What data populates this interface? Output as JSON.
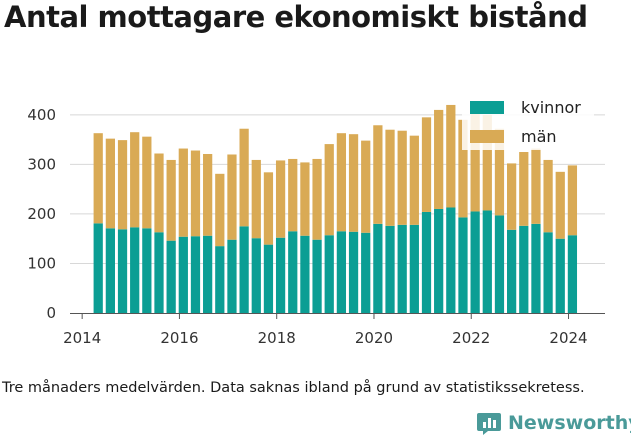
{
  "title": "Antal mottagare ekonomiskt bistånd",
  "footnote": "Tre månaders medelvärden. Data saknas ibland på grund av statistikssekretess.",
  "brand": {
    "name": "Newsworthy",
    "icon": "bar-chart-logo-icon"
  },
  "colors": {
    "kvinnor": "#0b9e94",
    "man": "#d9aa55",
    "grid": "#d8d8d8"
  },
  "chart_data": {
    "type": "bar",
    "stacked": true,
    "x_start": 2014.33,
    "x_step": 0.25,
    "xlim": [
      2013.75,
      2024.75
    ],
    "ylim": [
      0,
      430
    ],
    "xticks": [
      2014,
      2016,
      2018,
      2020,
      2022,
      2024
    ],
    "yticks": [
      0,
      100,
      200,
      300,
      400
    ],
    "grid": "horizontal",
    "legend_position": "top-right",
    "series": [
      {
        "name": "kvinnor",
        "values": [
          181,
          171,
          169,
          173,
          171,
          163,
          146,
          154,
          155,
          156,
          135,
          148,
          175,
          151,
          138,
          152,
          165,
          156,
          148,
          157,
          165,
          164,
          162,
          180,
          176,
          178,
          178,
          204,
          210,
          213,
          193,
          205,
          207,
          197,
          168,
          176,
          180,
          163,
          150,
          157
        ]
      },
      {
        "name": "män",
        "values": [
          182,
          181,
          180,
          192,
          185,
          159,
          163,
          178,
          173,
          165,
          146,
          172,
          197,
          158,
          146,
          156,
          146,
          148,
          163,
          184,
          198,
          197,
          186,
          199,
          194,
          190,
          180,
          191,
          200,
          207,
          197,
          200,
          193,
          175,
          134,
          149,
          152,
          146,
          135,
          141
        ]
      }
    ]
  }
}
